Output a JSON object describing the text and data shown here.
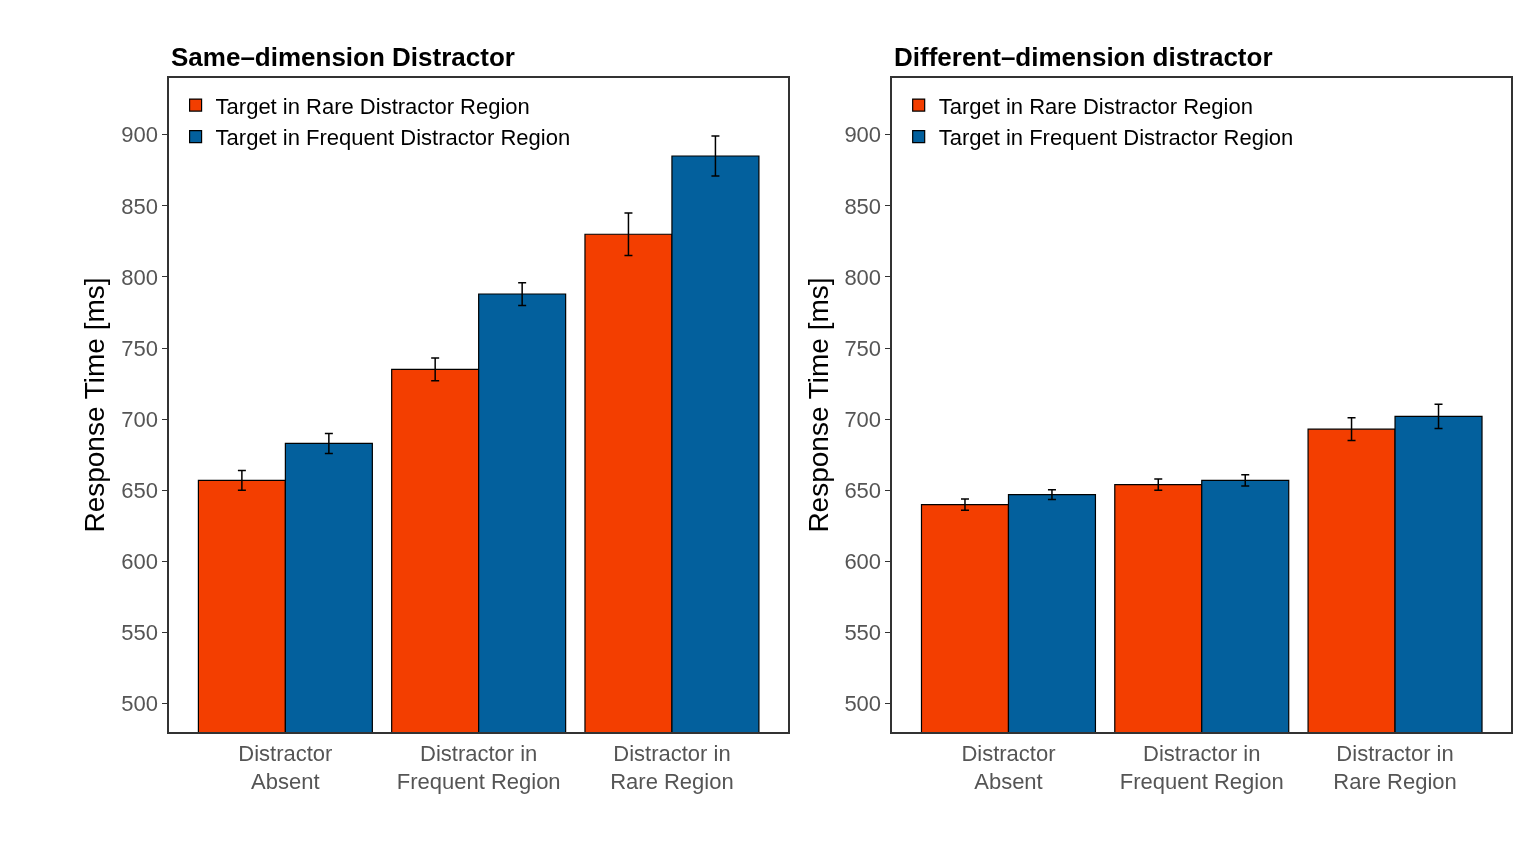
{
  "chart_data": [
    {
      "type": "bar",
      "title": "Same–dimension Distractor",
      "ylabel": "Response Time [ms]",
      "categories": [
        "Distractor\nAbsent",
        "Distractor in\nFrequent Region",
        "Distractor in\nRare Region"
      ],
      "series": [
        {
          "name": "Target in Rare Distractor Region",
          "color": "#f33e00",
          "values": [
            657,
            735,
            830
          ],
          "errors": [
            7,
            8,
            15
          ]
        },
        {
          "name": "Target in Frequent Distractor Region",
          "color": "#03609d",
          "values": [
            683,
            788,
            885
          ],
          "errors": [
            7,
            8,
            14
          ]
        }
      ],
      "ylim": [
        480,
        940
      ],
      "yticks": [
        500,
        550,
        600,
        650,
        700,
        750,
        800,
        850,
        900
      ],
      "grid": false,
      "legend": "top left"
    },
    {
      "type": "bar",
      "title": "Different–dimension distractor",
      "ylabel": "Response Time [ms]",
      "categories": [
        "Distractor\nAbsent",
        "Distractor in\nFrequent Region",
        "Distractor in\nRare Region"
      ],
      "series": [
        {
          "name": "Target in Rare Distractor Region",
          "color": "#f33e00",
          "values": [
            640,
            654,
            693
          ],
          "errors": [
            4,
            4,
            8
          ]
        },
        {
          "name": "Target in Frequent Distractor Region",
          "color": "#03609d",
          "values": [
            647,
            657,
            702
          ],
          "errors": [
            3.5,
            4,
            8.5
          ]
        }
      ],
      "ylim": [
        480,
        940
      ],
      "yticks": [
        500,
        550,
        600,
        650,
        700,
        750,
        800,
        850,
        900
      ],
      "grid": false,
      "legend": "top left"
    }
  ]
}
